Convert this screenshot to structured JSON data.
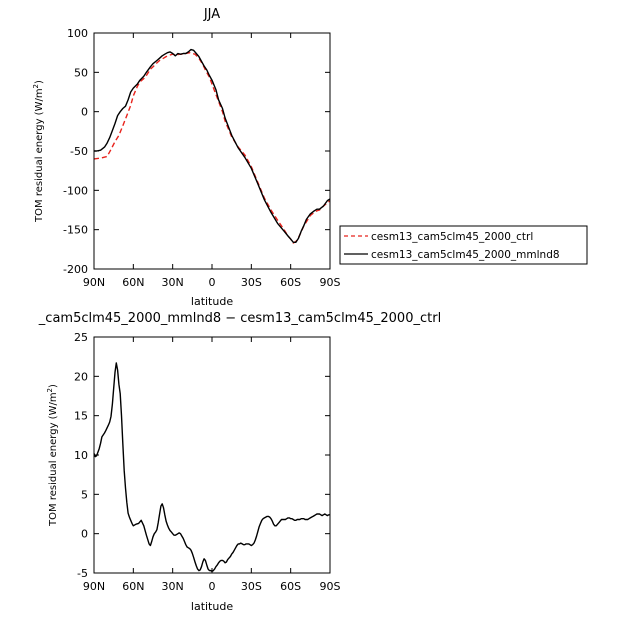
{
  "chart_data": [
    {
      "type": "line",
      "title": "JJA",
      "xlabel": "latitude",
      "ylabel_main": "TOM residual energy (W/m",
      "ylabel_sup": "2",
      "ylabel_close": ")",
      "xlim": [
        90,
        -90
      ],
      "ylim": [
        -200,
        100
      ],
      "xticks": [
        90,
        60,
        30,
        0,
        -30,
        -60,
        -90
      ],
      "xtick_labels": [
        "90N",
        "60N",
        "30N",
        "0",
        "30S",
        "60S",
        "90S"
      ],
      "yticks": [
        -200,
        -150,
        -100,
        -50,
        0,
        50,
        100
      ],
      "ytick_labels": [
        "-200",
        "-150",
        "-100",
        "-50",
        "0",
        "50",
        "100"
      ],
      "legend_position": "right",
      "series": [
        {
          "name": "cesm13_cam5clm45_2000_ctrl",
          "color": "#e8231c",
          "dash": "dashed",
          "x": [
            90,
            85,
            80,
            77,
            74,
            71,
            68,
            65,
            62,
            60,
            57,
            55,
            52,
            50,
            47,
            45,
            42,
            40,
            37,
            35,
            32,
            30,
            27,
            25,
            22,
            20,
            17,
            15,
            13,
            10,
            7,
            5,
            2,
            0,
            -3,
            -5,
            -8,
            -10,
            -15,
            -20,
            -25,
            -30,
            -35,
            -40,
            -45,
            -50,
            -55,
            -58,
            -60,
            -62,
            -64,
            -66,
            -68,
            -70,
            -72,
            -75,
            -78,
            -80,
            -82,
            -85,
            -88,
            -90
          ],
          "y": [
            -60,
            -59,
            -57,
            -48,
            -38,
            -30,
            -18,
            -5,
            8,
            20,
            32,
            38,
            42,
            46,
            54,
            57,
            62,
            65,
            68,
            70,
            72,
            73,
            72,
            73,
            73,
            74,
            75,
            74,
            73,
            68,
            60,
            53,
            44,
            35,
            22,
            13,
            0,
            -12,
            -32,
            -45,
            -55,
            -70,
            -90,
            -110,
            -125,
            -138,
            -150,
            -158,
            -162,
            -167,
            -165,
            -160,
            -153,
            -145,
            -140,
            -132,
            -128,
            -126,
            -125,
            -120,
            -116,
            -113
          ]
        },
        {
          "name": "cesm13_cam5clm45_2000_mmlnd8",
          "color": "#000000",
          "dash": "solid",
          "x": [
            90,
            88,
            85,
            82,
            80,
            78,
            76,
            74,
            72,
            70,
            68,
            66,
            64,
            62,
            60,
            57,
            55,
            52,
            50,
            47,
            45,
            42,
            40,
            38,
            36,
            34,
            32,
            30,
            28,
            26,
            24,
            22,
            20,
            18,
            16,
            14,
            12,
            10,
            8,
            6,
            4,
            2,
            0,
            -3,
            -5,
            -8,
            -10,
            -15,
            -20,
            -25,
            -30,
            -35,
            -40,
            -45,
            -50,
            -55,
            -58,
            -60,
            -62,
            -64,
            -66,
            -68,
            -70,
            -72,
            -75,
            -78,
            -80,
            -82,
            -85,
            -88,
            -90
          ],
          "y": [
            -50,
            -50,
            -49,
            -45,
            -40,
            -33,
            -24,
            -15,
            -5,
            0,
            4,
            7,
            15,
            25,
            30,
            35,
            40,
            45,
            50,
            57,
            61,
            65,
            68,
            71,
            73,
            75,
            76,
            74,
            71,
            74,
            73,
            74,
            74,
            76,
            79,
            78,
            74,
            70,
            64,
            58,
            53,
            46,
            40,
            28,
            15,
            4,
            -8,
            -30,
            -46,
            -58,
            -72,
            -92,
            -112,
            -128,
            -142,
            -152,
            -158,
            -162,
            -166,
            -166,
            -161,
            -152,
            -145,
            -137,
            -130,
            -126,
            -124,
            -124,
            -120,
            -113,
            -111
          ]
        }
      ]
    },
    {
      "type": "line",
      "title": "_cam5clm45_2000_mmlnd8 − cesm13_cam5clm45_2000_ctrl",
      "xlabel": "latitude",
      "ylabel_main": "TOM residual energy (W/m",
      "ylabel_sup": "2",
      "ylabel_close": ")",
      "xlim": [
        90,
        -90
      ],
      "ylim": [
        -5,
        25
      ],
      "xticks": [
        90,
        60,
        30,
        0,
        -30,
        -60,
        -90
      ],
      "xtick_labels": [
        "90N",
        "60N",
        "30N",
        "0",
        "30S",
        "60S",
        "90S"
      ],
      "yticks": [
        -5,
        0,
        5,
        10,
        15,
        20,
        25
      ],
      "ytick_labels": [
        "-5",
        "0",
        "5",
        "10",
        "15",
        "20",
        "25"
      ],
      "series": [
        {
          "color": "#000000",
          "dash": "solid",
          "x": [
            90,
            89,
            88,
            86,
            85,
            84,
            82,
            81,
            79,
            78,
            77,
            76,
            75,
            74,
            73,
            72,
            71,
            70,
            69,
            68,
            67,
            66,
            65,
            64,
            63,
            62,
            61,
            60,
            58,
            56,
            54,
            52,
            50,
            48,
            47,
            46,
            45,
            44,
            43,
            42,
            41,
            40,
            39,
            38,
            37,
            36,
            35,
            34,
            33,
            32,
            31,
            30,
            29,
            28,
            27,
            26,
            25,
            24,
            23,
            22,
            21,
            20,
            19,
            18,
            17,
            16,
            15,
            14,
            13,
            12,
            11,
            10,
            9,
            8,
            7,
            6,
            5,
            4,
            3,
            2,
            1,
            0,
            -1,
            -2,
            -3,
            -4,
            -5,
            -6,
            -7,
            -8,
            -9,
            -10,
            -11,
            -12,
            -13,
            -14,
            -15,
            -16,
            -17,
            -18,
            -19,
            -20,
            -21,
            -22,
            -23,
            -24,
            -25,
            -26,
            -27,
            -28,
            -29,
            -30,
            -31,
            -32,
            -33,
            -34,
            -35,
            -36,
            -37,
            -38,
            -39,
            -40,
            -41,
            -42,
            -43,
            -44,
            -45,
            -46,
            -47,
            -48,
            -49,
            -50,
            -51,
            -52,
            -53,
            -54,
            -55,
            -56,
            -57,
            -58,
            -59,
            -60,
            -61,
            -62,
            -63,
            -64,
            -65,
            -66,
            -67,
            -68,
            -69,
            -70,
            -71,
            -72,
            -73,
            -74,
            -75,
            -76,
            -77,
            -78,
            -79,
            -80,
            -81,
            -82,
            -83,
            -84,
            -85,
            -86,
            -87,
            -88,
            -89,
            -90
          ],
          "y": [
            10.2,
            9.8,
            9.9,
            10.8,
            11.5,
            12.3,
            12.8,
            13.1,
            13.8,
            14.2,
            14.9,
            16.5,
            18.5,
            20.5,
            21.7,
            20.8,
            19.0,
            17.8,
            15.0,
            11.5,
            8.0,
            5.8,
            4.0,
            2.6,
            2.1,
            1.7,
            1.3,
            1.0,
            1.2,
            1.3,
            1.7,
            1.0,
            -0.2,
            -1.3,
            -1.5,
            -1.0,
            -0.4,
            0.0,
            0.2,
            0.5,
            1.4,
            2.5,
            3.5,
            3.8,
            3.3,
            2.4,
            1.6,
            1.1,
            0.7,
            0.4,
            0.2,
            0.0,
            -0.2,
            -0.2,
            -0.1,
            0.0,
            0.1,
            0.0,
            -0.3,
            -0.6,
            -1.0,
            -1.4,
            -1.7,
            -1.8,
            -1.9,
            -2.1,
            -2.5,
            -3.0,
            -3.6,
            -4.1,
            -4.5,
            -4.7,
            -4.6,
            -4.2,
            -3.6,
            -3.2,
            -3.4,
            -4.0,
            -4.5,
            -4.7,
            -4.7,
            -4.8,
            -4.7,
            -4.5,
            -4.2,
            -4.0,
            -3.7,
            -3.5,
            -3.4,
            -3.4,
            -3.5,
            -3.7,
            -3.6,
            -3.3,
            -3.1,
            -2.9,
            -2.6,
            -2.4,
            -2.1,
            -1.8,
            -1.5,
            -1.3,
            -1.3,
            -1.2,
            -1.3,
            -1.4,
            -1.4,
            -1.3,
            -1.3,
            -1.3,
            -1.4,
            -1.5,
            -1.4,
            -1.2,
            -0.8,
            -0.3,
            0.3,
            0.9,
            1.3,
            1.7,
            1.9,
            2.0,
            2.1,
            2.2,
            2.2,
            2.1,
            1.9,
            1.6,
            1.2,
            1.0,
            1.0,
            1.2,
            1.4,
            1.6,
            1.8,
            1.8,
            1.8,
            1.8,
            1.9,
            2.0,
            2.0,
            1.9,
            1.9,
            1.8,
            1.7,
            1.7,
            1.8,
            1.8,
            1.8,
            1.9,
            1.9,
            1.9,
            1.8,
            1.8,
            1.8,
            1.9,
            2.0,
            2.1,
            2.2,
            2.3,
            2.4,
            2.5,
            2.5,
            2.5,
            2.4,
            2.3,
            2.4,
            2.5,
            2.4,
            2.3,
            2.4,
            2.4
          ]
        }
      ]
    }
  ]
}
